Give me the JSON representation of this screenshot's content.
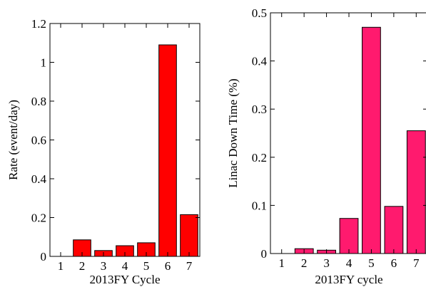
{
  "chart_data": [
    {
      "type": "bar",
      "categories": [
        "1",
        "2",
        "3",
        "4",
        "5",
        "6",
        "7"
      ],
      "values": [
        0,
        0.085,
        0.03,
        0.055,
        0.07,
        1.09,
        0.215
      ],
      "xlabel": "2013FY Cycle",
      "ylabel": "Rate (event/day)",
      "ylim": [
        0,
        1.2
      ],
      "yticks": [
        "0",
        "0.2",
        "0.4",
        "0.6",
        "0.8",
        "1",
        "1.2"
      ],
      "color": "#ff0000",
      "grid": false
    },
    {
      "type": "bar",
      "categories": [
        "1",
        "2",
        "3",
        "4",
        "5",
        "6",
        "7"
      ],
      "values": [
        0,
        0.01,
        0.007,
        0.073,
        0.47,
        0.098,
        0.255
      ],
      "xlabel": "2013FY cycle",
      "ylabel": "Linac Down Time (%)",
      "ylim": [
        0,
        0.5
      ],
      "yticks": [
        "0",
        "0.1",
        "0.2",
        "0.3",
        "0.4",
        "0.5"
      ],
      "color": "#ff1a6e",
      "grid": false
    }
  ]
}
